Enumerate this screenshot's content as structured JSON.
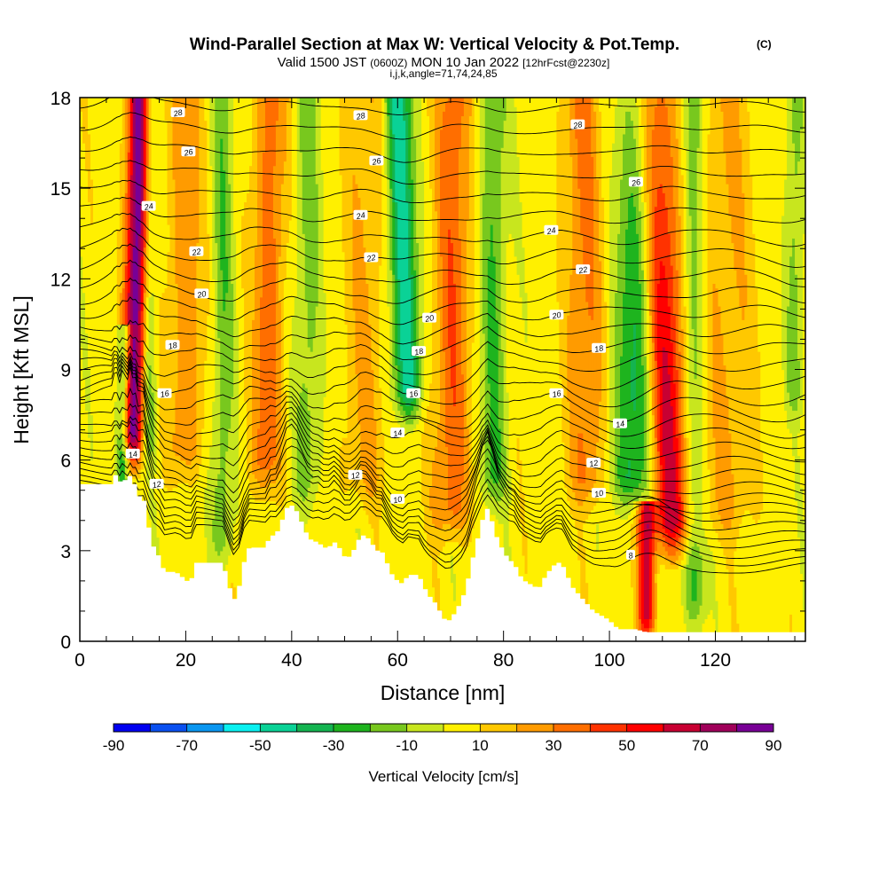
{
  "title": {
    "main": "Wind-Parallel Section at Max W: Vertical Velocity & Pot.Temp.",
    "tag": "(C)",
    "valid_prefix": "Valid 1500 JST",
    "valid_utc": "(0600Z)",
    "valid_date": "MON 10 Jan 2022",
    "forecast": "[12hrFcst@2230z]",
    "indices": "i,j,k,angle=71,74,24,85"
  },
  "colors": {
    "bins": [
      "#0000f0",
      "#0a50f0",
      "#0a96f0",
      "#0af0f0",
      "#0ad296",
      "#14b450",
      "#1eb41e",
      "#78c81e",
      "#c8e61e",
      "#fff000",
      "#ffc800",
      "#ff9b00",
      "#ff6e00",
      "#ff3200",
      "#ff0000",
      "#c80032",
      "#a0005a",
      "#780096"
    ],
    "terrain": "#ffffff"
  },
  "chart_data": {
    "type": "heatmap",
    "xlabel": "Distance [nm]",
    "ylabel": "Height [Kft MSL]",
    "xlim": [
      0,
      137
    ],
    "ylim": [
      0,
      18
    ],
    "x_ticks": [
      0,
      20,
      40,
      60,
      80,
      100,
      120
    ],
    "y_ticks": [
      0,
      3,
      6,
      9,
      12,
      15,
      18
    ],
    "colorbar": {
      "label": "Vertical Velocity [cm/s]",
      "boundaries": [
        -90,
        -80,
        -70,
        -60,
        -50,
        -40,
        -30,
        -20,
        -10,
        0,
        10,
        20,
        30,
        40,
        50,
        60,
        70,
        80,
        90
      ],
      "tick_labels": [
        "-90",
        "-70",
        "-50",
        "-30",
        "-10",
        "10",
        "30",
        "50",
        "70",
        "90"
      ]
    },
    "terrain": {
      "x": [
        0,
        6,
        6.5,
        7,
        7.5,
        8,
        9,
        9.5,
        10,
        10.5,
        11,
        12,
        12.5,
        13,
        14,
        15,
        16,
        17,
        18,
        19,
        20,
        21,
        22,
        23,
        24,
        25,
        26,
        27,
        28,
        29,
        30,
        31,
        32,
        33,
        34,
        35,
        36,
        37,
        38,
        39,
        40,
        41,
        42,
        43,
        44,
        45,
        46,
        47,
        48,
        49,
        50,
        51,
        52,
        53,
        54,
        55,
        56,
        57,
        58,
        59,
        60,
        61,
        62,
        63,
        64,
        65,
        66,
        67,
        68,
        69,
        70,
        71,
        72,
        73,
        74,
        75,
        76,
        77,
        78,
        79,
        80,
        81,
        82,
        83,
        84,
        85,
        86,
        87,
        88,
        89,
        90,
        91,
        92,
        93,
        94,
        95,
        96,
        97,
        98,
        99,
        100,
        101,
        102,
        103,
        104,
        105,
        106,
        107,
        137
      ],
      "height": [
        5.2,
        5.2,
        5.5,
        5.5,
        5.2,
        5.5,
        5.2,
        5.5,
        5.2,
        5.2,
        4.8,
        4.8,
        4.3,
        3.8,
        3.1,
        2.8,
        2.3,
        2.3,
        2.3,
        2.2,
        2.0,
        2.0,
        2.6,
        2.6,
        2.6,
        2.6,
        2.6,
        2.6,
        2.0,
        1.3,
        1.7,
        2.6,
        3.1,
        3.1,
        3.1,
        3.1,
        3.5,
        3.5,
        3.9,
        4.4,
        4.5,
        4.3,
        3.9,
        3.5,
        3.3,
        3.3,
        3.1,
        3.1,
        3.3,
        3.1,
        2.8,
        2.8,
        3.1,
        3.5,
        3.5,
        3.3,
        3.0,
        3.0,
        2.6,
        2.2,
        2.0,
        1.9,
        2.2,
        2.2,
        2.2,
        1.8,
        1.5,
        1.3,
        1.0,
        0.7,
        0.7,
        1.0,
        1.3,
        1.8,
        2.6,
        3.3,
        4.0,
        4.4,
        3.9,
        3.3,
        3.0,
        2.7,
        2.6,
        2.2,
        2.0,
        1.9,
        1.8,
        1.8,
        2.2,
        2.4,
        2.6,
        2.6,
        2.2,
        1.8,
        1.6,
        1.4,
        1.2,
        1.0,
        0.9,
        0.8,
        0.7,
        0.5,
        0.4,
        0.4,
        0.4,
        0.4,
        0.35,
        0.3,
        0.3
      ]
    },
    "isentropes": {
      "base_heights": [
        2.35,
        2.55,
        2.8,
        3.05,
        3.35,
        3.65,
        3.95,
        4.25,
        4.55,
        4.9,
        5.3,
        5.7,
        6.15,
        6.6,
        7.05,
        7.55,
        8.05,
        8.55,
        9.1,
        9.65,
        10.2,
        10.8,
        11.4,
        12.0,
        12.65,
        13.3,
        14.0,
        14.7,
        15.4,
        16.15,
        16.9,
        17.65
      ],
      "labels": [
        {
          "text": "8",
          "x": 104,
          "y": 2.85
        },
        {
          "text": "10",
          "x": 60,
          "y": 4.7
        },
        {
          "text": "10",
          "x": 98,
          "y": 4.9
        },
        {
          "text": "12",
          "x": 52,
          "y": 5.5
        },
        {
          "text": "12",
          "x": 14.5,
          "y": 5.2
        },
        {
          "text": "12",
          "x": 97,
          "y": 5.9
        },
        {
          "text": "14",
          "x": 10,
          "y": 6.2
        },
        {
          "text": "14",
          "x": 60,
          "y": 6.9
        },
        {
          "text": "14",
          "x": 102,
          "y": 7.2
        },
        {
          "text": "16",
          "x": 16,
          "y": 8.2
        },
        {
          "text": "16",
          "x": 63,
          "y": 8.2
        },
        {
          "text": "16",
          "x": 90,
          "y": 8.2
        },
        {
          "text": "18",
          "x": 17.5,
          "y": 9.8
        },
        {
          "text": "18",
          "x": 64,
          "y": 9.6
        },
        {
          "text": "18",
          "x": 98,
          "y": 9.7
        },
        {
          "text": "20",
          "x": 23,
          "y": 11.5
        },
        {
          "text": "20",
          "x": 66,
          "y": 10.7
        },
        {
          "text": "20",
          "x": 90,
          "y": 10.8
        },
        {
          "text": "22",
          "x": 22,
          "y": 12.9
        },
        {
          "text": "22",
          "x": 55,
          "y": 12.7
        },
        {
          "text": "22",
          "x": 95,
          "y": 12.3
        },
        {
          "text": "24",
          "x": 13,
          "y": 14.4
        },
        {
          "text": "24",
          "x": 53,
          "y": 14.1
        },
        {
          "text": "24",
          "x": 89,
          "y": 13.6
        },
        {
          "text": "26",
          "x": 20.5,
          "y": 16.2
        },
        {
          "text": "26",
          "x": 56,
          "y": 15.9
        },
        {
          "text": "26",
          "x": 105,
          "y": 15.2
        },
        {
          "text": "28",
          "x": 18.5,
          "y": 17.5
        },
        {
          "text": "28",
          "x": 53,
          "y": 17.4
        },
        {
          "text": "28",
          "x": 94,
          "y": 17.1
        }
      ]
    },
    "updraft_features": [
      {
        "x": 10,
        "y0": 6.5,
        "y1": 18,
        "w": 1.5,
        "amp": 85,
        "tilt": 0.12
      },
      {
        "x": 112,
        "y0": 3.5,
        "y1": 18,
        "w": 2.5,
        "amp": 60,
        "tilt": -0.25
      },
      {
        "x": 107,
        "y0": 0.5,
        "y1": 4.2,
        "w": 1.2,
        "amp": 60,
        "tilt": 0
      },
      {
        "x": 35,
        "y0": 5.5,
        "y1": 18,
        "w": 2.2,
        "amp": 30,
        "tilt": 0.1
      },
      {
        "x": 70,
        "y0": 4.0,
        "y1": 18,
        "w": 2.5,
        "amp": 32,
        "tilt": 0.05
      },
      {
        "x": 96,
        "y0": 5.0,
        "y1": 18,
        "w": 2.5,
        "amp": 28,
        "tilt": -0.1
      },
      {
        "x": 20,
        "y0": 6.0,
        "y1": 18,
        "w": 2.5,
        "amp": 22,
        "tilt": 0
      },
      {
        "x": 54,
        "y0": 5.0,
        "y1": 18,
        "w": 3.0,
        "amp": 16,
        "tilt": 0
      },
      {
        "x": 122,
        "y0": 4.0,
        "y1": 18,
        "w": 4.0,
        "amp": 16,
        "tilt": 0
      }
    ],
    "downdraft_features": [
      {
        "x": 62,
        "y0": 8.0,
        "y1": 18,
        "w": 1.8,
        "amp": 55,
        "tilt": -0.2
      },
      {
        "x": 104,
        "y0": 5.0,
        "y1": 18,
        "w": 3.0,
        "amp": 38,
        "tilt": 0.2
      },
      {
        "x": 8,
        "y0": 5.5,
        "y1": 10,
        "w": 0.9,
        "amp": 45,
        "tilt": 0.1
      },
      {
        "x": 13,
        "y0": 6.5,
        "y1": 18,
        "w": 1.0,
        "amp": 28,
        "tilt": 0
      },
      {
        "x": 27,
        "y0": 3.0,
        "y1": 18,
        "w": 1.5,
        "amp": 22,
        "tilt": 0
      },
      {
        "x": 43,
        "y0": 5.0,
        "y1": 18,
        "w": 1.8,
        "amp": 20,
        "tilt": 0
      },
      {
        "x": 78,
        "y0": 5.0,
        "y1": 18,
        "w": 1.8,
        "amp": 26,
        "tilt": 0
      },
      {
        "x": 116,
        "y0": 1.0,
        "y1": 18,
        "w": 1.5,
        "amp": 26,
        "tilt": 0
      },
      {
        "x": 135,
        "y0": 8.0,
        "y1": 18,
        "w": 1.2,
        "amp": 20,
        "tilt": 0
      }
    ]
  }
}
